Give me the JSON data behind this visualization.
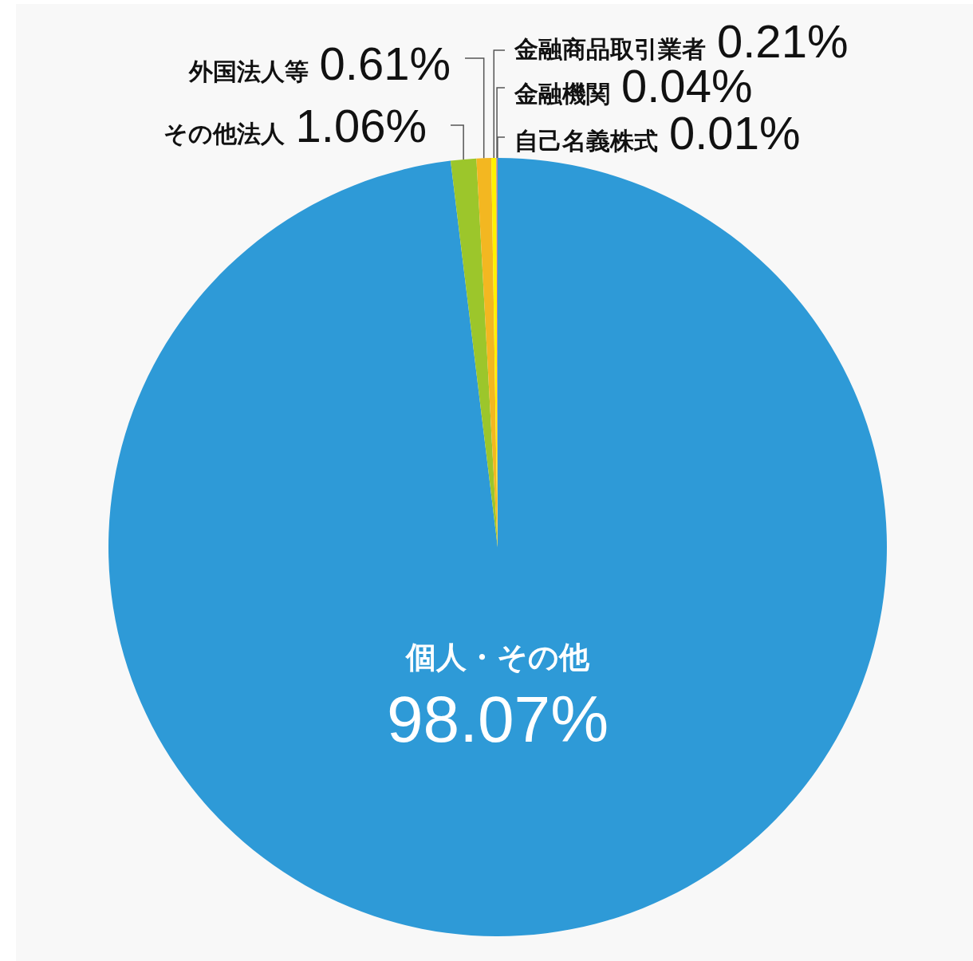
{
  "chart_data": {
    "type": "pie",
    "categories": [
      "個人・その他",
      "その他法人",
      "外国法人等",
      "金融商品取引業者",
      "金融機関",
      "自己名義株式"
    ],
    "values": [
      98.07,
      1.06,
      0.61,
      0.21,
      0.04,
      0.01
    ],
    "colors": [
      "#2e9ad7",
      "#9cc62b",
      "#f3b721",
      "#fff100",
      "#7f6fb5",
      "#e6464f"
    ],
    "value_labels": [
      "98.07%",
      "1.06%",
      "0.61%",
      "0.21%",
      "0.04%",
      "0.01%"
    ]
  }
}
